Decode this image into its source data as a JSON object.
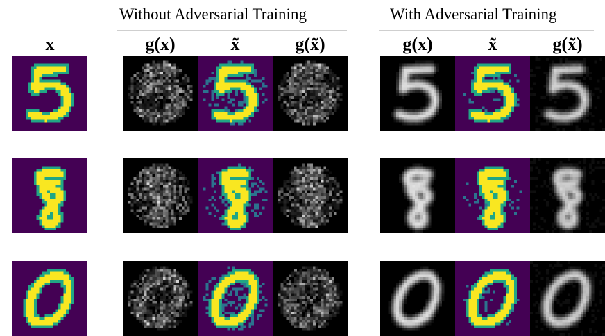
{
  "groups": {
    "without": "Without Adversarial Training",
    "with": "With Adversarial Training"
  },
  "column_labels": {
    "x": "x",
    "g_x": "g(x)",
    "x_tilde": "x̃",
    "g_x_tilde": "g(x̃)"
  },
  "rows": [
    {
      "digit": "5"
    },
    {
      "digit": "8"
    },
    {
      "digit": "0"
    }
  ],
  "colors": {
    "background_purple": "#440154",
    "stroke_yellow": "#f9e721",
    "edge_green": "#21a685",
    "noise_teal": "#2c728e",
    "saliency_black": "#000000",
    "saliency_white": "#ffffff"
  }
}
